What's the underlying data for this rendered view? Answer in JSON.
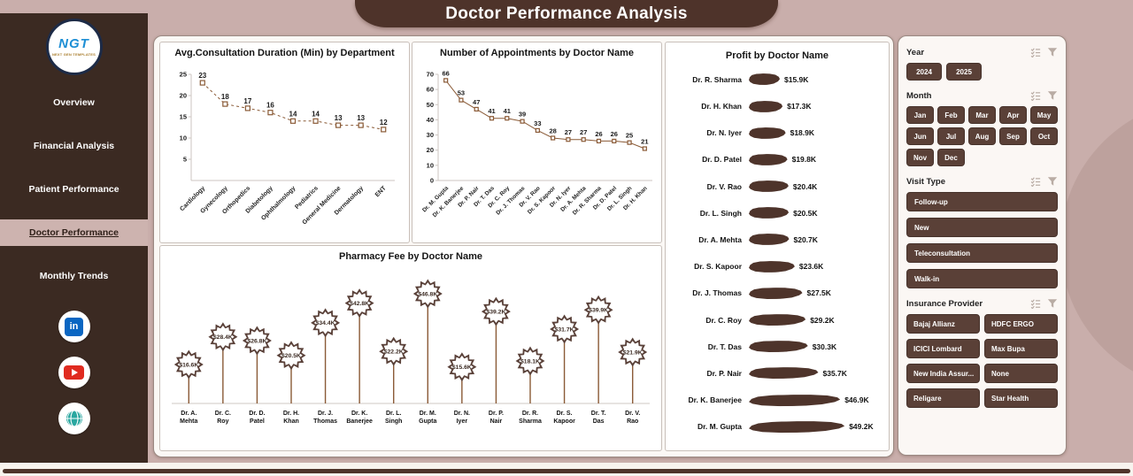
{
  "title": "Doctor Performance Analysis",
  "sidebar": {
    "logo": {
      "text": "NGT",
      "subtext": "NEXT GEN TEMPLATES"
    },
    "items": [
      {
        "label": "Overview",
        "active": false
      },
      {
        "label": "Financial Analysis",
        "active": false
      },
      {
        "label": "Patient Performance",
        "active": false
      },
      {
        "label": "Doctor Performance",
        "active": true
      },
      {
        "label": "Monthly Trends",
        "active": false
      }
    ],
    "social": [
      "linkedin",
      "youtube",
      "website"
    ]
  },
  "icons": {
    "linkedin_glyph": "in"
  },
  "colors": {
    "background": "#c9aeab",
    "sidebar": "#3b2a22",
    "banner": "#4e332a",
    "slicer_button": "#5a4037",
    "series_line": "#8a5a36",
    "profit_bar": "#4e342b",
    "linkedin": "#0a66c2",
    "youtube": "#e02b20",
    "globe": "#2aa7a0"
  },
  "filters": {
    "year": {
      "label": "Year",
      "options": [
        "2024",
        "2025"
      ]
    },
    "month": {
      "label": "Month",
      "options": [
        "Jan",
        "Feb",
        "Mar",
        "Apr",
        "May",
        "Jun",
        "Jul",
        "Aug",
        "Sep",
        "Oct",
        "Nov",
        "Dec"
      ]
    },
    "visit_type": {
      "label": "Visit Type",
      "options": [
        "Follow-up",
        "New",
        "Teleconsultation",
        "Walk-in"
      ]
    },
    "insurance": {
      "label": "Insurance Provider",
      "options": [
        "Bajaj Allianz",
        "HDFC ERGO",
        "ICICI Lombard",
        "Max Bupa",
        "New India Assur...",
        "None",
        "Religare",
        "Star Health"
      ]
    }
  },
  "chart_data": [
    {
      "id": "consultation",
      "type": "line",
      "title": "Avg.Consultation Duration (Min) by Department",
      "categories": [
        "Cardiology",
        "Gynecology",
        "Orthopedics",
        "Diabetology",
        "Ophthalmology",
        "Pediatrics",
        "General Medicine",
        "Dermatology",
        "ENT"
      ],
      "values": [
        23,
        18,
        17,
        16,
        14,
        14,
        13,
        13,
        12
      ],
      "ylim": [
        0,
        25
      ],
      "yticks": [
        5,
        10,
        15,
        20,
        25
      ],
      "grid": false,
      "legend": "none"
    },
    {
      "id": "appointments",
      "type": "line",
      "title": "Number of Appointments by Doctor Name",
      "categories": [
        "Dr. M. Gupta",
        "Dr. K. Banerjee",
        "Dr. P. Nair",
        "Dr. T. Das",
        "Dr. C. Roy",
        "Dr. J. Thomas",
        "Dr. V. Rao",
        "Dr. S. Kapoor",
        "Dr. N. Iyer",
        "Dr. A. Mehta",
        "Dr. R. Sharma",
        "Dr. D. Patel",
        "Dr. L. Singh",
        "Dr. H. Khan"
      ],
      "values": [
        66,
        53,
        47,
        41,
        41,
        39,
        33,
        28,
        27,
        27,
        26,
        26,
        25,
        21
      ],
      "ylim": [
        0,
        70
      ],
      "yticks": [
        0,
        10,
        20,
        30,
        40,
        50,
        60,
        70
      ],
      "grid": false,
      "legend": "none"
    },
    {
      "id": "profit",
      "type": "bar",
      "orientation": "horizontal",
      "title": "Profit by Doctor Name",
      "categories": [
        "Dr. R. Sharma",
        "Dr. H. Khan",
        "Dr. N. Iyer",
        "Dr. D. Patel",
        "Dr. V. Rao",
        "Dr. L. Singh",
        "Dr. A. Mehta",
        "Dr. S. Kapoor",
        "Dr. J. Thomas",
        "Dr. C. Roy",
        "Dr. T. Das",
        "Dr. P. Nair",
        "Dr. K. Banerjee",
        "Dr. M. Gupta"
      ],
      "values": [
        15.9,
        17.3,
        18.9,
        19.8,
        20.4,
        20.5,
        20.7,
        23.6,
        27.5,
        29.2,
        30.3,
        35.7,
        46.9,
        49.2
      ],
      "labels": [
        "$15.9K",
        "$17.3K",
        "$18.9K",
        "$19.8K",
        "$20.4K",
        "$20.5K",
        "$20.7K",
        "$23.6K",
        "$27.5K",
        "$29.2K",
        "$30.3K",
        "$35.7K",
        "$46.9K",
        "$49.2K"
      ],
      "unit": "USD thousands",
      "legend": "none"
    },
    {
      "id": "pharmacy",
      "type": "lollipop",
      "title": "Pharmacy Fee by Doctor Name",
      "categories": [
        "Dr. A. Mehta",
        "Dr. C. Roy",
        "Dr. D. Patel",
        "Dr. H. Khan",
        "Dr. J. Thomas",
        "Dr. K. Banerjee",
        "Dr. L. Singh",
        "Dr. M. Gupta",
        "Dr. N. Iyer",
        "Dr. P. Nair",
        "Dr. R. Sharma",
        "Dr. S. Kapoor",
        "Dr. T. Das",
        "Dr. V. Rao"
      ],
      "values": [
        16.6,
        28.4,
        26.8,
        20.5,
        34.4,
        42.8,
        22.2,
        46.8,
        15.6,
        39.2,
        18.1,
        31.7,
        39.9,
        21.9
      ],
      "labels": [
        "$16.6K",
        "$28.4K",
        "$26.8K",
        "$20.5K",
        "$34.4K",
        "$42.8K",
        "$22.2K",
        "$46.8K",
        "$15.6K",
        "$39.2K",
        "$18.1K",
        "$31.7K",
        "$39.9K",
        "$21.9K"
      ],
      "unit": "USD thousands",
      "legend": "none"
    }
  ]
}
